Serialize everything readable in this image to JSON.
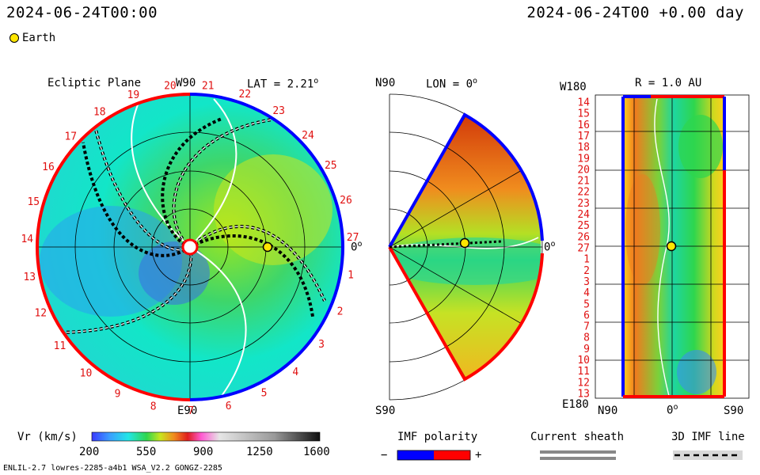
{
  "header": {
    "datetime_left": "2024-06-24T00:00",
    "datetime_right": "2024-06-24T00 +0.00 day"
  },
  "legend": {
    "earth_label": "Earth"
  },
  "panels": {
    "ecliptic": {
      "title": "Ecliptic Plane",
      "top_label": "W90",
      "lat_label": "LAT = 2.21",
      "lat_unit": "o",
      "right_label": "0",
      "right_unit": "o",
      "bottom_label": "E90",
      "carrington_numbers": [
        "20",
        "21",
        "22",
        "23",
        "24",
        "25",
        "26",
        "27",
        "1",
        "2",
        "3",
        "4",
        "5",
        "6",
        "7",
        "8",
        "9",
        "10",
        "11",
        "12",
        "13",
        "14",
        "15",
        "16",
        "17",
        "18",
        "19"
      ]
    },
    "meridional": {
      "top_left": "N90",
      "lon_label": "LON = 0",
      "lon_unit": "o",
      "right_label": "0",
      "right_unit": "o",
      "bottom_left": "S90"
    },
    "radial": {
      "top_left": "W180",
      "r_label": "R = 1.0 AU",
      "bottom_left": "E180",
      "row_labels": [
        "14",
        "15",
        "16",
        "17",
        "18",
        "19",
        "20",
        "21",
        "22",
        "23",
        "24",
        "25",
        "26",
        "27",
        "1",
        "2",
        "3",
        "4",
        "5",
        "6",
        "7",
        "8",
        "9",
        "10",
        "11",
        "12",
        "13"
      ],
      "x_left": "N90",
      "x_mid": "0",
      "x_mid_unit": "o",
      "x_right": "S90"
    }
  },
  "colorbar": {
    "label": "Vr (km/s)",
    "ticks": [
      "200",
      "550",
      "900",
      "1250",
      "1600"
    ]
  },
  "imf_polarity": {
    "title": "IMF polarity",
    "minus": "−",
    "plus": "+"
  },
  "current_sheath": {
    "title": "Current sheath"
  },
  "imf_line": {
    "title": "3D IMF line"
  },
  "footer": {
    "run_info": "ENLIL-2.7 lowres-2285-a4b1 WSA_V2.2 GONGZ-2285"
  },
  "colors": {
    "polarity_negative": "#0000ff",
    "polarity_positive": "#ff0000",
    "earth": "#ffe600"
  }
}
